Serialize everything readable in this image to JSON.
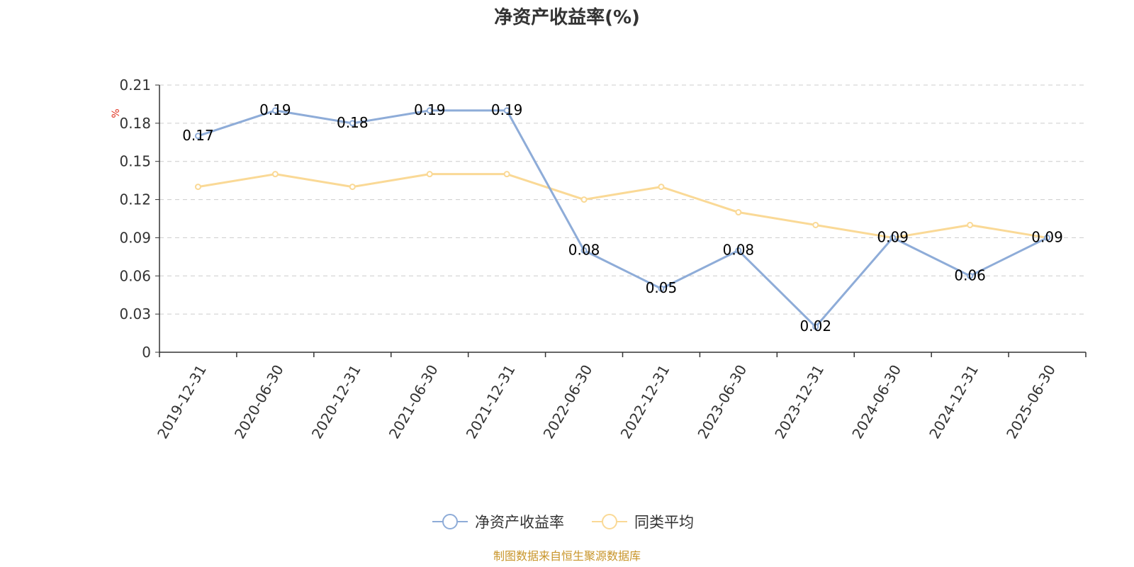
{
  "chart_data": {
    "type": "line",
    "title": "净资产收益率(%)",
    "ylabel": "%",
    "ylim": [
      0,
      0.21
    ],
    "yticks": [
      0,
      0.03,
      0.06,
      0.09,
      0.12,
      0.15,
      0.18,
      0.21
    ],
    "categories": [
      "2019-12-31",
      "2020-06-30",
      "2020-12-31",
      "2021-06-30",
      "2021-12-31",
      "2022-06-30",
      "2022-12-31",
      "2023-06-30",
      "2023-12-31",
      "2024-06-30",
      "2024-12-31",
      "2025-06-30"
    ],
    "series": [
      {
        "name": "净资产收益率",
        "color": "#8eacd8",
        "values": [
          0.17,
          0.19,
          0.18,
          0.19,
          0.19,
          0.08,
          0.05,
          0.08,
          0.02,
          0.09,
          0.06,
          0.09
        ],
        "labels": [
          "0.17",
          "0.19",
          "0.18",
          "0.19",
          "0.19",
          "0.08",
          "0.05",
          "0.08",
          "0.02",
          "0.09",
          "0.06",
          "0.09"
        ]
      },
      {
        "name": "同类平均",
        "color": "#fad996",
        "values": [
          0.13,
          0.14,
          0.13,
          0.14,
          0.14,
          0.12,
          0.13,
          0.11,
          0.1,
          0.09,
          0.1,
          0.09
        ]
      }
    ],
    "grid": true,
    "legend_position": "bottom-center",
    "source": "制图数据来自恒生聚源数据库"
  }
}
